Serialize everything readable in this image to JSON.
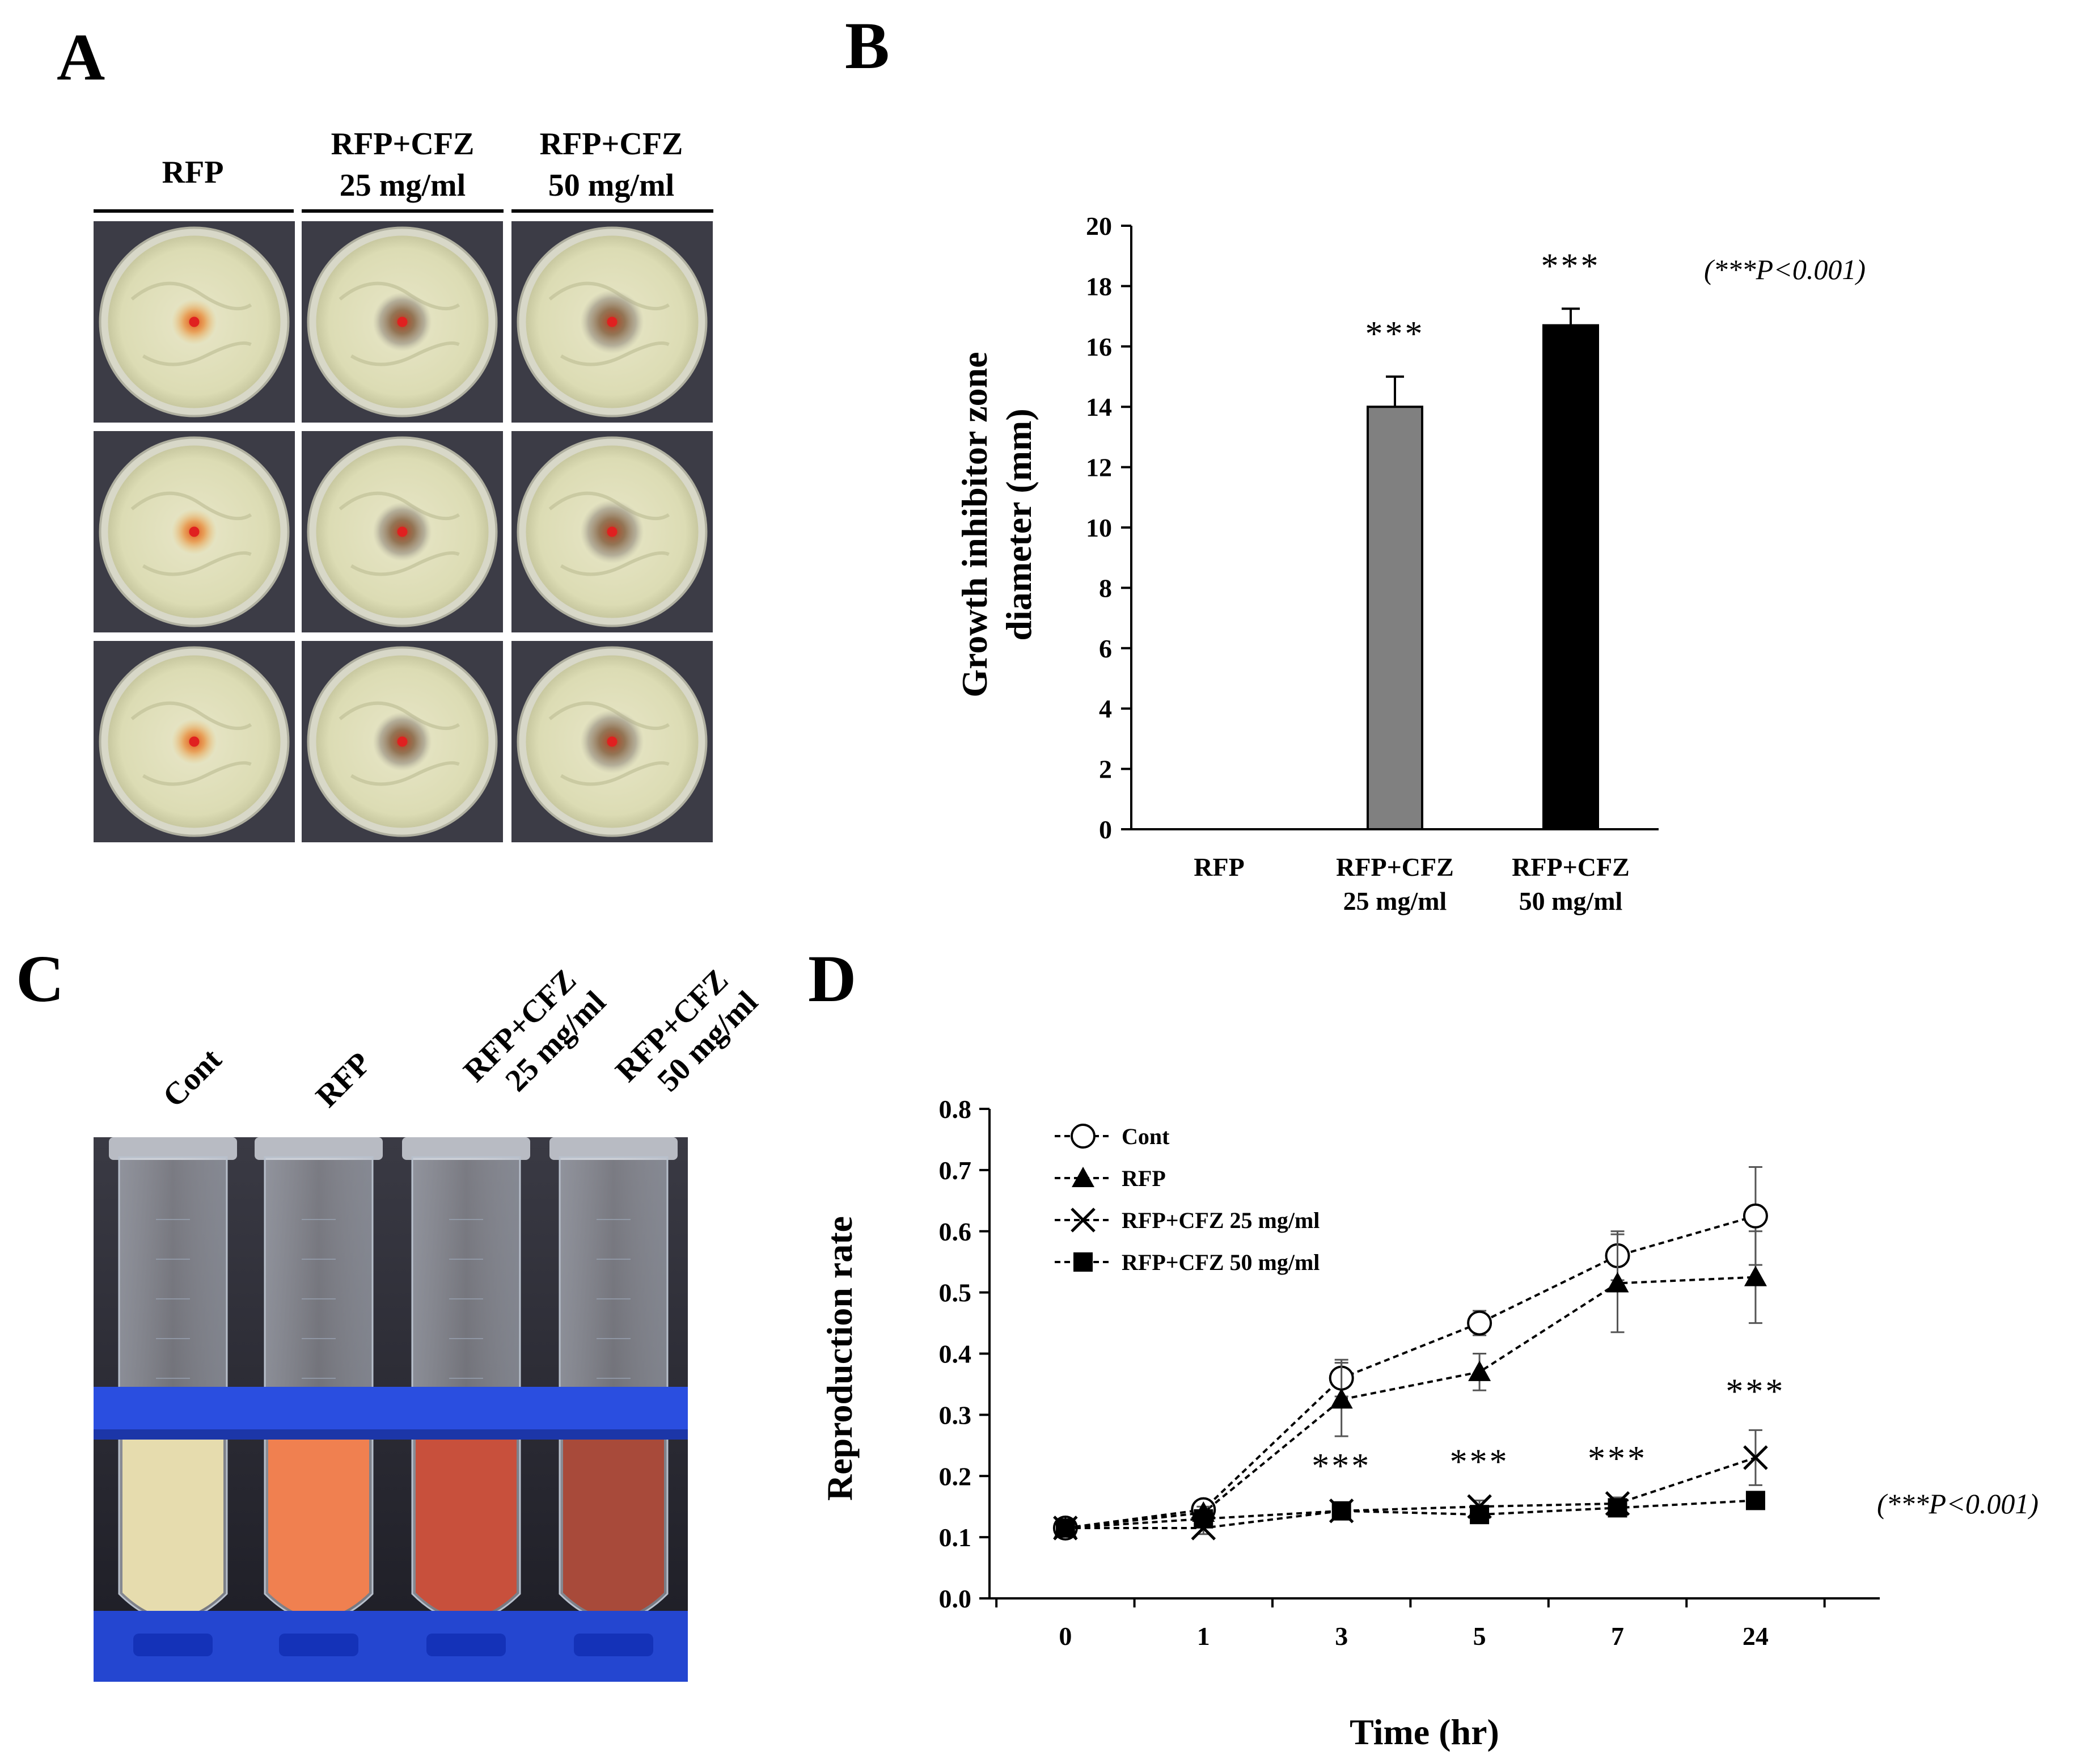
{
  "panel_labels": [
    "A",
    "B",
    "C",
    "D"
  ],
  "panel_a": {
    "column_headers": [
      {
        "line1": "RFP",
        "line2": ""
      },
      {
        "line1": "RFP+CFZ",
        "line2": "25 mg/ml"
      },
      {
        "line1": "RFP+CFZ",
        "line2": "50 mg/ml"
      }
    ]
  },
  "panel_c": {
    "tube_labels": [
      {
        "line1": "Cont",
        "line2": ""
      },
      {
        "line1": "RFP",
        "line2": ""
      },
      {
        "line1": "RFP+CFZ",
        "line2": "25 mg/ml"
      },
      {
        "line1": "RFP+CFZ",
        "line2": "50 mg/ml"
      }
    ],
    "tube_colors": [
      "#e6dcae",
      "#f08050",
      "#c8503c",
      "#a84a3a"
    ]
  },
  "chart_data": [
    {
      "panel": "B",
      "type": "bar",
      "categories": [
        {
          "line1": "RFP",
          "line2": ""
        },
        {
          "line1": "RFP+CFZ",
          "line2": "25 mg/ml"
        },
        {
          "line1": "RFP+CFZ",
          "line2": "50 mg/ml"
        }
      ],
      "values": [
        0,
        14.0,
        16.7
      ],
      "errors": [
        0,
        1.0,
        0.55
      ],
      "bar_colors": [
        "#ffffff",
        "#808080",
        "#000000"
      ],
      "ylabel_line1": "Growth  inhibitor zone",
      "ylabel_line2": "diameter (mm)",
      "ylim": [
        0,
        20
      ],
      "yticks": [
        "0",
        "2",
        "4",
        "6",
        "8",
        "10",
        "12",
        "14",
        "16",
        "18",
        "20"
      ],
      "significance": [
        "",
        "***",
        "***"
      ],
      "pvalue_note": "(***P<0.001)"
    },
    {
      "panel": "D",
      "type": "line",
      "x": [
        "0",
        "1",
        "3",
        "5",
        "7",
        "24"
      ],
      "xlabel": "Time (hr)",
      "ylabel": "Reproduction rate",
      "ylim": [
        0,
        0.8
      ],
      "yticks": [
        "0.0",
        "0.1",
        "0.2",
        "0.3",
        "0.4",
        "0.5",
        "0.6",
        "0.7",
        "0.8"
      ],
      "series": [
        {
          "name": "Cont",
          "marker": "open-circle",
          "values": [
            0.115,
            0.145,
            0.36,
            0.45,
            0.56,
            0.625
          ],
          "errors": [
            0.01,
            0.01,
            0.03,
            0.02,
            0.04,
            0.08
          ]
        },
        {
          "name": "RFP",
          "marker": "filled-triangle",
          "values": [
            0.115,
            0.14,
            0.325,
            0.37,
            0.515,
            0.525
          ],
          "errors": [
            0.01,
            0.01,
            0.06,
            0.03,
            0.08,
            0.075
          ]
        },
        {
          "name": "RFP+CFZ 25 mg/ml",
          "marker": "x",
          "values": [
            0.115,
            0.115,
            0.143,
            0.15,
            0.155,
            0.23
          ],
          "errors": [
            0.01,
            0.01,
            0.01,
            0.01,
            0.01,
            0.045
          ]
        },
        {
          "name": "RFP+CFZ 50 mg/ml",
          "marker": "filled-square",
          "values": [
            0.115,
            0.13,
            0.143,
            0.137,
            0.148,
            0.16
          ],
          "errors": [
            0.01,
            0.01,
            0.01,
            0.01,
            0.01,
            0.01
          ]
        }
      ],
      "significance": [
        "",
        "",
        "***",
        "***",
        "***",
        "***"
      ],
      "pvalue_note": "(***P<0.001)"
    }
  ]
}
